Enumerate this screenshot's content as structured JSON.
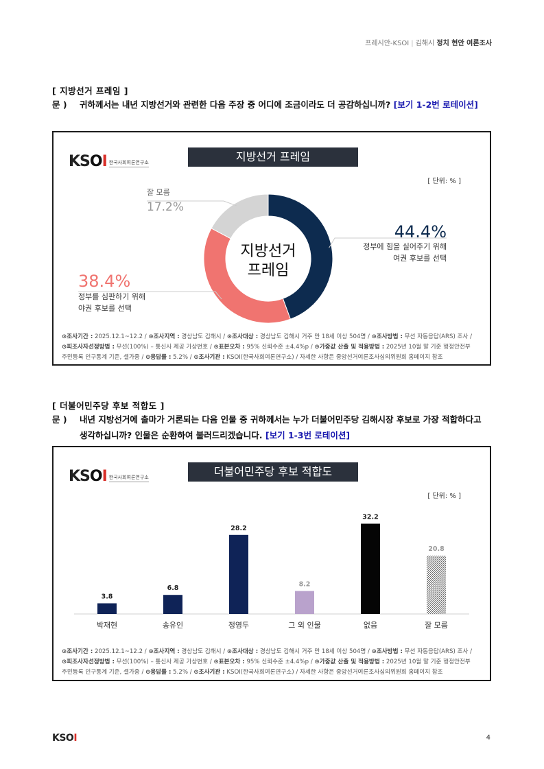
{
  "header": {
    "org": "프레시안-KSOI",
    "sep": "|",
    "region": "김해시",
    "title": "정치 현안 여론조사"
  },
  "logo": {
    "brand": "KSOI",
    "sub": "한국사회여론연구소"
  },
  "section1": {
    "title": "[ 지방선거 프레임 ]",
    "q_mark": "문 )",
    "question": "귀하께서는 내년 지방선거와 관련한 다음 주장 중 어디에 조금이라도 더 공감하십니까? ",
    "rotation": "[보기 1-2번 로테이션]",
    "chart_title": "지방선거 프레임",
    "unit": "[ 단위: % ]"
  },
  "section2": {
    "title": "[ 더불어민주당 후보 적합도 ]",
    "q_mark": "문 )",
    "question": "내년 지방선거에 출마가 거론되는 다음 인물 중 귀하께서는 누가 더불어민주당 김해시장 후보로 가장 적합하다고 생각하십니까? 인물은 순환하여 불러드리겠습니다. ",
    "rotation": "[보기 1-3번 로테이션]",
    "chart_title": "더불어민주당 후보 적합도",
    "unit": "[ 단위: % ]"
  },
  "footnote": {
    "l1_k1": "⊙조사기간 :",
    "l1_v1": " 2025.12.1~12.2 / ",
    "l1_k2": "⊙조사지역 :",
    "l1_v2": " 경상남도 김해시 / ",
    "l1_k3": "⊙조사대상 :",
    "l1_v3": " 경상남도 김해시 거주 만 18세 이상 504명 / ",
    "l1_k4": "⊙조사방법 :",
    "l1_v4": " 무선 자동응답(ARS) 조사 /",
    "l2_k1": "⊙피조사자선정방법 :",
    "l2_v1": " 무선(100%) – 통신사 제공 가상번호 / ",
    "l2_k2": "⊙표본오차 :",
    "l2_v2": " 95% 신뢰수준 ±4.4%p / ",
    "l2_k3": "⊙가중값 산출 및 적용방법 :",
    "l2_v3": " 2025년 10월 말 기준 행정안전부",
    "l3_v1": "주민등록 인구통계 기준, 셀가중 / ",
    "l3_k2": "⊙응답률 :",
    "l3_v2": " 5.2% / ",
    "l3_k3": "⊙조사기관 :",
    "l3_v3": " KSOI(한국사회여론연구소) / 자세한 사항은 중앙선거여론조사심의위원회 홈페이지 참조"
  },
  "page": {
    "logo": "KSOI",
    "number": "4"
  },
  "chart_data": [
    {
      "type": "pie",
      "title": "지방선거 프레임",
      "center_label": [
        "지방선거",
        "프레임"
      ],
      "slices": [
        {
          "label_lines": [
            "정부에 힘을 실어주기 위해",
            "여권 후보를 선택"
          ],
          "value": 44.4,
          "value_label": "44.4%",
          "color": "#0d2b4f"
        },
        {
          "label_lines": [
            "정부를 심판하기 위해",
            "야권 후보를 선택"
          ],
          "value": 38.4,
          "value_label": "38.4%",
          "color": "#f07470"
        },
        {
          "label_lines": [
            "잘 모름"
          ],
          "value": 17.2,
          "value_label": "17.2%",
          "color": "#d4d4d4"
        }
      ],
      "unit": "[ 단위: % ]"
    },
    {
      "type": "bar",
      "title": "더불어민주당 후보 적합도",
      "categories": [
        "박재현",
        "송유인",
        "정영두",
        "그 외 인물",
        "없음",
        "잘 모름"
      ],
      "values": [
        3.8,
        6.8,
        28.2,
        8.2,
        32.2,
        20.8
      ],
      "value_labels": [
        "3.8",
        "6.8",
        "28.2",
        "8.2",
        "32.2",
        "20.8"
      ],
      "colors": [
        "#0f2357",
        "#0f2357",
        "#0f2357",
        "#b9a2cc",
        "#050505",
        "hatch"
      ],
      "label_colors": [
        "#222",
        "#222",
        "#222",
        "#999",
        "#222",
        "#999"
      ],
      "ylim": [
        0,
        35
      ],
      "unit": "[ 단위: % ]"
    }
  ]
}
